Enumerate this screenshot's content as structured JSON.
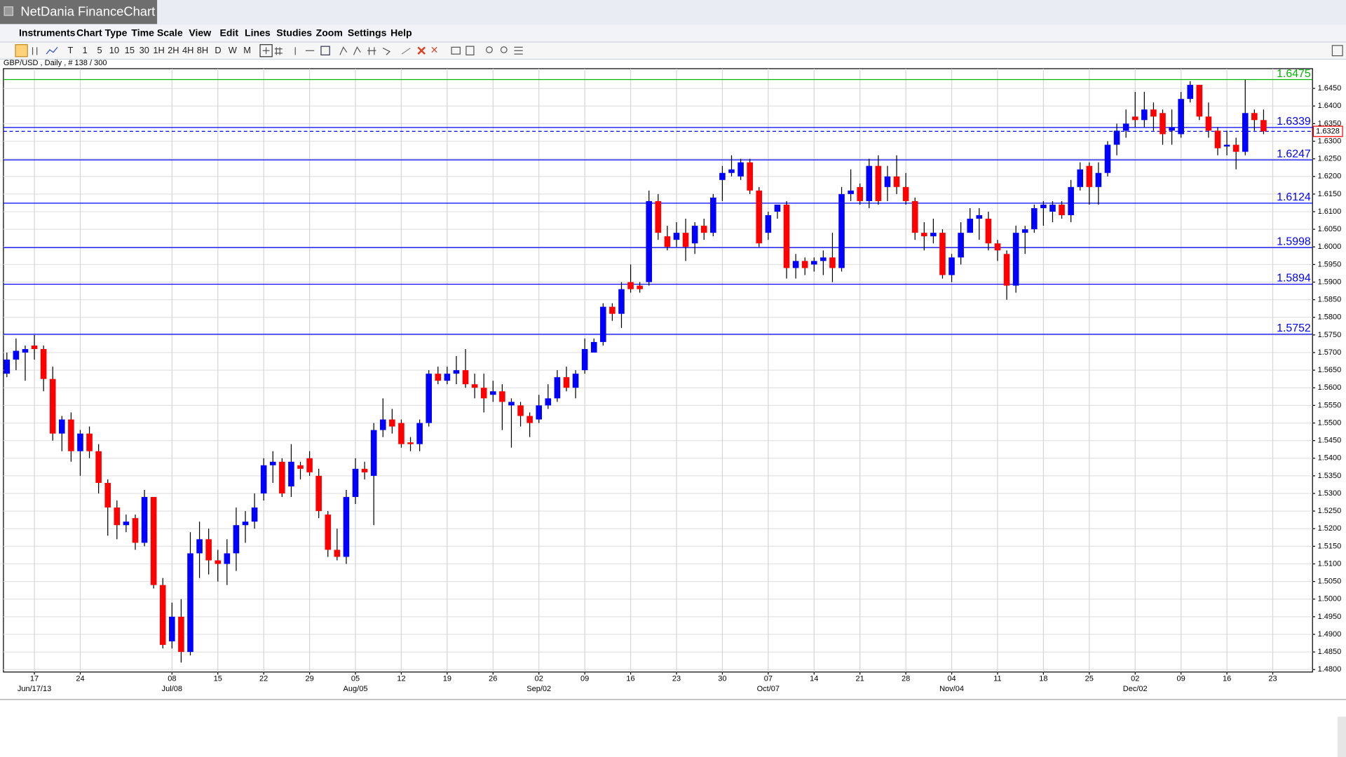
{
  "window": {
    "title": "NetDania FinanceChart"
  },
  "menu": [
    "Instruments",
    "Chart Type",
    "Time Scale",
    "View",
    "Edit",
    "Lines",
    "Studies",
    "Zoom",
    "Settings",
    "Help"
  ],
  "toolbar": {
    "timeframes": [
      "T",
      "1",
      "5",
      "10",
      "15",
      "30",
      "1H",
      "2H",
      "4H",
      "8H",
      "D",
      "W",
      "M"
    ]
  },
  "chart_data": {
    "type": "candlestick",
    "subtitle": "GBP/USD , Daily , # 138 / 300",
    "up_color": "#0000ff",
    "down_color": "#ff0000",
    "grid": true,
    "categories": [
      null,
      null,
      null,
      "17",
      null,
      null,
      null,
      null,
      "24",
      null,
      null,
      null,
      null,
      null,
      null,
      null,
      null,
      null,
      "08",
      null,
      null,
      null,
      null,
      "15",
      null,
      null,
      null,
      null,
      "22",
      null,
      null,
      null,
      null,
      "29",
      null,
      null,
      null,
      null,
      "05",
      null,
      null,
      null,
      null,
      "12",
      null,
      null,
      null,
      null,
      "19",
      null,
      null,
      null,
      null,
      "26",
      null,
      null,
      null,
      null,
      "02",
      null,
      null,
      null,
      null,
      "09",
      null,
      null,
      null,
      null,
      "16",
      null,
      null,
      null,
      null,
      "23",
      null,
      null,
      null,
      null,
      "30",
      null,
      null,
      null,
      null,
      "07",
      null,
      null,
      null,
      null,
      "14",
      null,
      null,
      null,
      null,
      "21",
      null,
      null,
      null,
      null,
      "28",
      null,
      null,
      null,
      null,
      "04",
      null,
      null,
      null,
      null,
      "11",
      null,
      null,
      null,
      null,
      "18",
      null,
      null,
      null,
      null,
      "25",
      null,
      null,
      null,
      null,
      "02",
      null,
      null,
      null,
      null,
      "09",
      null,
      null,
      null,
      null,
      "16",
      null,
      null,
      null,
      null,
      "23"
    ],
    "period_labels": [
      null,
      null,
      null,
      "Jun/17/13",
      null,
      null,
      null,
      null,
      null,
      null,
      null,
      null,
      null,
      null,
      null,
      null,
      null,
      null,
      "Jul/08",
      null,
      null,
      null,
      null,
      null,
      null,
      null,
      null,
      null,
      null,
      null,
      null,
      null,
      null,
      null,
      null,
      null,
      null,
      null,
      "Aug/05",
      null,
      null,
      null,
      null,
      null,
      null,
      null,
      null,
      null,
      null,
      null,
      null,
      null,
      null,
      null,
      null,
      null,
      null,
      null,
      "Sep/02",
      null,
      null,
      null,
      null,
      null,
      null,
      null,
      null,
      null,
      null,
      null,
      null,
      null,
      null,
      null,
      null,
      null,
      null,
      null,
      null,
      null,
      null,
      null,
      null,
      "Oct/07",
      null,
      null,
      null,
      null,
      null,
      null,
      null,
      null,
      null,
      null,
      null,
      null,
      null,
      null,
      null,
      null,
      null,
      null,
      null,
      "Nov/04",
      null,
      null,
      null,
      null,
      null,
      null,
      null,
      null,
      null,
      null,
      null,
      null,
      null,
      null,
      null,
      null,
      null,
      null,
      null,
      "Dec/02",
      null,
      null,
      null,
      null,
      null,
      null,
      null,
      null,
      null,
      null,
      null,
      null,
      null,
      null,
      null
    ],
    "open": [
      1.564,
      1.568,
      1.57,
      1.572,
      1.571,
      1.5625,
      1.547,
      1.551,
      1.542,
      1.547,
      1.542,
      1.533,
      1.526,
      1.521,
      1.523,
      1.516,
      1.529,
      1.504,
      1.488,
      1.495,
      1.485,
      1.513,
      1.517,
      1.511,
      1.51,
      1.513,
      1.521,
      1.522,
      1.53,
      1.538,
      1.539,
      1.532,
      1.538,
      1.54,
      1.535,
      1.524,
      1.514,
      1.512,
      1.529,
      1.537,
      1.535,
      1.548,
      1.551,
      1.55,
      1.5445,
      1.544,
      1.55,
      1.564,
      1.562,
      1.564,
      1.565,
      1.561,
      1.56,
      1.558,
      1.559,
      1.555,
      1.555,
      1.552,
      1.551,
      1.555,
      1.557,
      1.563,
      1.56,
      1.565,
      1.57,
      1.573,
      1.583,
      1.581,
      1.59,
      1.589,
      1.59,
      1.613,
      1.603,
      1.602,
      1.604,
      1.601,
      1.606,
      1.604,
      1.619,
      1.621,
      1.62,
      1.624,
      1.616,
      1.604,
      1.61,
      1.612,
      1.594,
      1.596,
      1.595,
      1.596,
      1.597,
      1.594,
      1.615,
      1.617,
      1.613,
      1.623,
      1.617,
      1.62,
      1.617,
      1.613,
      1.604,
      1.603,
      1.604,
      1.592,
      1.597,
      1.604,
      1.608,
      1.608,
      1.601,
      1.598,
      1.589,
      1.604,
      1.605,
      1.611,
      1.61,
      1.612,
      1.609,
      1.617,
      1.623,
      1.617,
      1.621,
      1.629,
      1.633,
      1.637,
      1.636,
      1.639,
      1.638,
      1.633,
      1.632,
      1.642,
      1.646,
      1.637,
      1.633,
      1.6285,
      1.629,
      1.627,
      1.638,
      1.636,
      null
    ],
    "high": [
      1.57,
      1.574,
      1.572,
      1.575,
      1.572,
      1.566,
      1.552,
      1.553,
      1.548,
      1.549,
      1.544,
      1.534,
      1.528,
      1.524,
      1.524,
      1.531,
      1.529,
      1.506,
      1.499,
      1.5,
      1.519,
      1.522,
      1.52,
      1.514,
      1.517,
      1.526,
      1.525,
      1.53,
      1.54,
      1.542,
      1.54,
      1.544,
      1.539,
      1.542,
      1.537,
      1.525,
      1.52,
      1.531,
      1.54,
      1.539,
      1.55,
      1.557,
      1.554,
      1.551,
      1.546,
      1.551,
      1.565,
      1.566,
      1.566,
      1.569,
      1.571,
      1.564,
      1.564,
      1.562,
      1.561,
      1.557,
      1.556,
      1.553,
      1.558,
      1.561,
      1.565,
      1.566,
      1.565,
      1.574,
      1.574,
      1.584,
      1.584,
      1.59,
      1.595,
      1.59,
      1.616,
      1.615,
      1.606,
      1.607,
      1.608,
      1.607,
      1.608,
      1.615,
      1.623,
      1.626,
      1.625,
      1.625,
      1.617,
      1.61,
      1.612,
      1.613,
      1.598,
      1.597,
      1.597,
      1.599,
      1.604,
      1.617,
      1.622,
      1.618,
      1.625,
      1.626,
      1.623,
      1.626,
      1.621,
      1.614,
      1.607,
      1.608,
      1.605,
      1.598,
      1.607,
      1.611,
      1.611,
      1.61,
      1.602,
      1.599,
      1.606,
      1.606,
      1.612,
      1.613,
      1.613,
      1.613,
      1.619,
      1.624,
      1.624,
      1.624,
      1.63,
      1.635,
      1.639,
      1.644,
      1.644,
      1.641,
      1.639,
      1.639,
      1.644,
      1.647,
      1.646,
      1.641,
      1.634,
      1.633,
      1.631,
      1.6475,
      1.639,
      1.639,
      null
    ],
    "low": [
      1.563,
      1.565,
      1.562,
      1.568,
      1.559,
      1.545,
      1.542,
      1.539,
      1.535,
      1.54,
      1.53,
      1.518,
      1.517,
      1.519,
      1.514,
      1.515,
      1.503,
      1.486,
      1.486,
      1.482,
      1.484,
      1.506,
      1.507,
      1.505,
      1.504,
      1.508,
      1.516,
      1.52,
      1.528,
      1.533,
      1.529,
      1.529,
      1.534,
      1.535,
      1.523,
      1.512,
      1.511,
      1.51,
      1.527,
      1.534,
      1.521,
      1.546,
      1.547,
      1.543,
      1.542,
      1.542,
      1.549,
      1.561,
      1.561,
      1.561,
      1.56,
      1.557,
      1.553,
      1.556,
      1.548,
      1.543,
      1.549,
      1.546,
      1.55,
      1.554,
      1.556,
      1.559,
      1.557,
      1.564,
      1.57,
      1.572,
      1.579,
      1.577,
      1.587,
      1.587,
      1.589,
      1.602,
      1.599,
      1.6,
      1.596,
      1.598,
      1.602,
      1.603,
      1.613,
      1.62,
      1.619,
      1.615,
      1.6,
      1.602,
      1.608,
      1.591,
      1.591,
      1.592,
      1.593,
      1.592,
      1.59,
      1.593,
      1.613,
      1.612,
      1.611,
      1.612,
      1.613,
      1.615,
      1.612,
      1.602,
      1.599,
      1.601,
      1.591,
      1.59,
      1.595,
      1.604,
      1.602,
      1.599,
      1.596,
      1.585,
      1.587,
      1.598,
      1.604,
      1.606,
      1.607,
      1.608,
      1.607,
      1.616,
      1.612,
      1.612,
      1.62,
      1.626,
      1.631,
      1.634,
      1.634,
      1.633,
      1.629,
      1.629,
      1.631,
      1.641,
      1.636,
      1.631,
      1.626,
      1.626,
      1.622,
      1.626,
      1.633,
      1.632,
      null
    ],
    "close": [
      1.568,
      1.5705,
      1.571,
      1.571,
      1.5625,
      1.547,
      1.551,
      1.542,
      1.547,
      1.542,
      1.533,
      1.526,
      1.521,
      1.522,
      1.516,
      1.529,
      1.504,
      1.487,
      1.495,
      1.485,
      1.513,
      1.517,
      1.511,
      1.51,
      1.513,
      1.521,
      1.522,
      1.526,
      1.538,
      1.539,
      1.53,
      1.539,
      1.537,
      1.536,
      1.525,
      1.514,
      1.512,
      1.529,
      1.537,
      1.536,
      1.548,
      1.551,
      1.549,
      1.544,
      1.544,
      1.55,
      1.564,
      1.562,
      1.564,
      1.565,
      1.561,
      1.56,
      1.557,
      1.559,
      1.556,
      1.556,
      1.552,
      1.55,
      1.555,
      1.557,
      1.563,
      1.56,
      1.564,
      1.571,
      1.573,
      1.583,
      1.581,
      1.588,
      1.588,
      1.588,
      1.613,
      1.604,
      1.6,
      1.604,
      1.6,
      1.606,
      1.604,
      1.614,
      1.621,
      1.622,
      1.624,
      1.616,
      1.601,
      1.609,
      1.612,
      1.594,
      1.596,
      1.594,
      1.596,
      1.597,
      1.594,
      1.615,
      1.616,
      1.613,
      1.623,
      1.613,
      1.62,
      1.617,
      1.613,
      1.604,
      1.603,
      1.604,
      1.592,
      1.597,
      1.604,
      1.608,
      1.609,
      1.601,
      1.599,
      1.589,
      1.604,
      1.605,
      1.611,
      1.612,
      1.612,
      1.609,
      1.617,
      1.622,
      1.617,
      1.621,
      1.629,
      1.633,
      1.635,
      1.636,
      1.639,
      1.637,
      1.632,
      1.634,
      1.642,
      1.646,
      1.637,
      1.633,
      1.628,
      1.629,
      1.627,
      1.638,
      1.636,
      1.6328,
      null
    ],
    "ylim": [
      1.4793,
      1.6506
    ],
    "yticks": [
      {
        "value": 1.48,
        "label": "1.4800"
      },
      {
        "value": 1.485,
        "label": "1.4850"
      },
      {
        "value": 1.49,
        "label": "1.4900"
      },
      {
        "value": 1.495,
        "label": "1.4950"
      },
      {
        "value": 1.5,
        "label": "1.5000"
      },
      {
        "value": 1.505,
        "label": "1.5050"
      },
      {
        "value": 1.51,
        "label": "1.5100"
      },
      {
        "value": 1.515,
        "label": "1.5150"
      },
      {
        "value": 1.52,
        "label": "1.5200"
      },
      {
        "value": 1.525,
        "label": "1.5250"
      },
      {
        "value": 1.53,
        "label": "1.5300"
      },
      {
        "value": 1.535,
        "label": "1.5350"
      },
      {
        "value": 1.54,
        "label": "1.5400"
      },
      {
        "value": 1.545,
        "label": "1.5450"
      },
      {
        "value": 1.55,
        "label": "1.5500"
      },
      {
        "value": 1.555,
        "label": "1.5550"
      },
      {
        "value": 1.56,
        "label": "1.5600"
      },
      {
        "value": 1.565,
        "label": "1.5650"
      },
      {
        "value": 1.57,
        "label": "1.5700"
      },
      {
        "value": 1.575,
        "label": "1.5750"
      },
      {
        "value": 1.58,
        "label": "1.5800"
      },
      {
        "value": 1.585,
        "label": "1.5850"
      },
      {
        "value": 1.59,
        "label": "1.5900"
      },
      {
        "value": 1.595,
        "label": "1.5950"
      },
      {
        "value": 1.6,
        "label": "1.6000"
      },
      {
        "value": 1.605,
        "label": "1.6050"
      },
      {
        "value": 1.61,
        "label": "1.6100"
      },
      {
        "value": 1.615,
        "label": "1.6150"
      },
      {
        "value": 1.62,
        "label": "1.6200"
      },
      {
        "value": 1.625,
        "label": "1.6250"
      },
      {
        "value": 1.63,
        "label": "1.6300"
      },
      {
        "value": 1.635,
        "label": "1.6350"
      },
      {
        "value": 1.64,
        "label": "1.6400"
      },
      {
        "value": 1.645,
        "label": "1.6450"
      }
    ],
    "levels": [
      {
        "value": 1.6475,
        "color": "#00b400"
      },
      {
        "value": 1.6339,
        "color": "#0000ff"
      },
      {
        "value": 1.6247,
        "color": "#0000ff"
      },
      {
        "value": 1.6124,
        "color": "#0000ff"
      },
      {
        "value": 1.5998,
        "color": "#0000ff"
      },
      {
        "value": 1.5894,
        "color": "#0000ff"
      },
      {
        "value": 1.5752,
        "color": "#0000ff"
      }
    ],
    "last_price": 1.6328,
    "last_price_color": "#ff0000"
  }
}
